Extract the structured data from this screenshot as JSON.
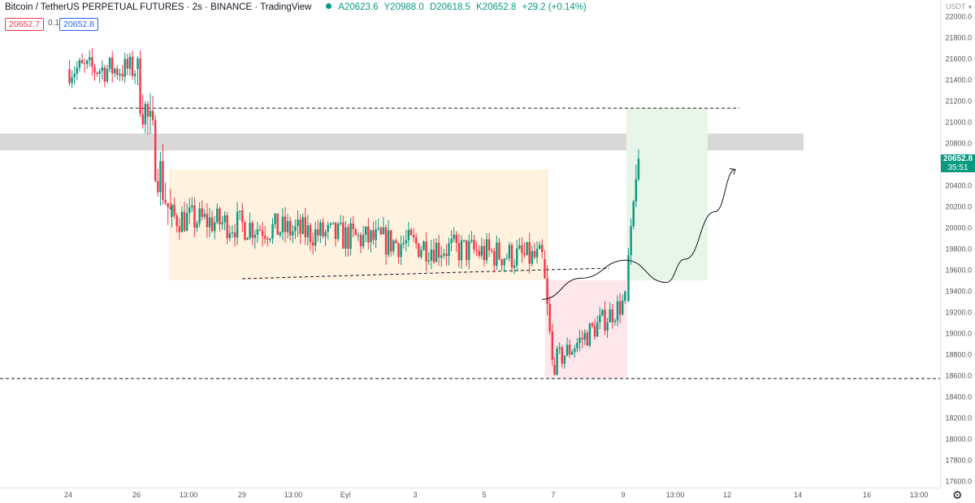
{
  "header": {
    "symbol_line": "Bitcoin / TetherUS PERPETUAL FUTURES · 2s · BINANCE · TradingView",
    "open": "A20623.6",
    "high": "Y20988.0",
    "low": "D20618.5",
    "close": "K20652.8",
    "change": "+29.2 (+0.14%)"
  },
  "trade": {
    "sell": "20652.7",
    "spread": "0.1",
    "buy": "20652.8"
  },
  "scale": {
    "currency": "USDT",
    "last_price": "20652.8",
    "countdown": "35:51",
    "ticks": [
      "22000.0",
      "21800.0",
      "21600.0",
      "21400.0",
      "21200.0",
      "21000.0",
      "20800.0",
      "20400.0",
      "20200.0",
      "20000.0",
      "19800.0",
      "19600.0",
      "19400.0",
      "19200.0",
      "19000.0",
      "18800.0",
      "18600.0",
      "18400.0",
      "18200.0",
      "18000.0",
      "17800.0",
      "17600.0"
    ]
  },
  "colors": {
    "up": "#089981",
    "down": "#f23645",
    "range_zone": "#fff3e0",
    "drop_zone": "#fde7ea",
    "target_zone": "#e8f5e9",
    "resistance_band": "#d6d6d6"
  },
  "chart_data": {
    "type": "candlestick",
    "title": "Bitcoin / TetherUS PERPETUAL FUTURES",
    "xlabel": "",
    "ylabel": "USDT",
    "ylim": [
      17500,
      22100
    ],
    "x_ticks": [
      "24",
      "26",
      "13:00",
      "29",
      "13:00",
      "Eyl",
      "3",
      "5",
      "7",
      "9",
      "13:00",
      "12",
      "14",
      "16",
      "13:00"
    ],
    "last_price": 20652.8,
    "segments": [
      {
        "name": "",
        "from": "24",
        "to": "26",
        "start": 21500,
        "end": 21500,
        "low": 20900,
        "high": 21850
      },
      {
        "name": "",
        "from": "26",
        "to": "28",
        "start": 21500,
        "end": 20100,
        "low": 20000,
        "high": 21900
      },
      {
        "name": "",
        "from": "28",
        "to": "6",
        "start": 20100,
        "end": 19700,
        "low": 19500,
        "high": 20550
      },
      {
        "name": "",
        "from": "6",
        "to": "7",
        "start": 19700,
        "end": 18700,
        "low": 18500,
        "high": 19800
      },
      {
        "name": "",
        "from": "7",
        "to": "9",
        "start": 18700,
        "end": 19300,
        "low": 18600,
        "high": 19450
      },
      {
        "name": "",
        "from": "9",
        "to": "9",
        "start": 19300,
        "end": 20652.8,
        "low": 19300,
        "high": 20988
      }
    ],
    "levels": [
      {
        "name": "",
        "value": 21130,
        "style": "dashed"
      },
      {
        "name": "",
        "value": 18570,
        "style": "dashed"
      }
    ],
    "zones": [
      {
        "name": "",
        "low": 20730,
        "high": 20890
      },
      {
        "name": "",
        "low": 19500,
        "high": 20550
      },
      {
        "name": "",
        "low": 18570,
        "high": 19500
      },
      {
        "name": "",
        "low": 19500,
        "high": 21130
      }
    ],
    "projection": [
      19320,
      19520,
      19690,
      19480,
      19700,
      20150,
      20550
    ]
  }
}
